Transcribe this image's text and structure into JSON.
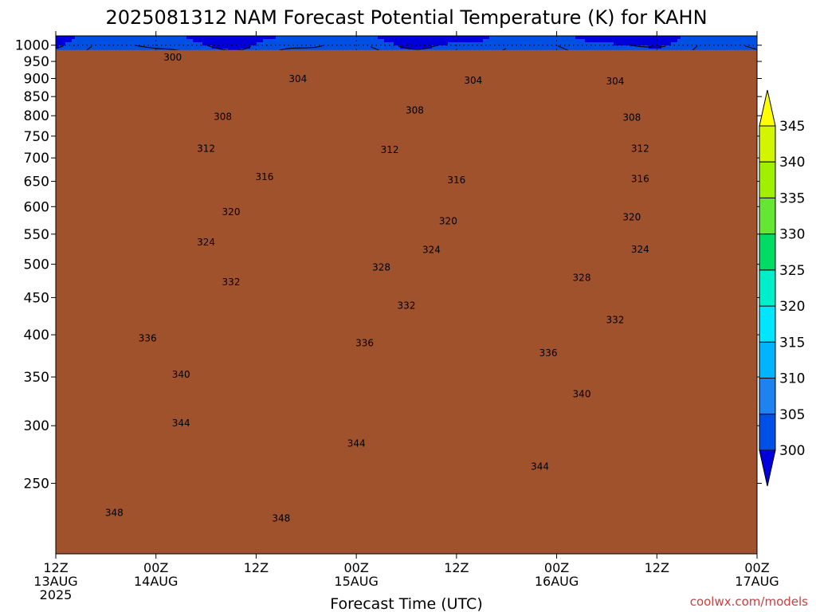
{
  "chart_data": {
    "type": "heatmap",
    "title": "2025081312 NAM Forecast Potential Temperature (K) for KAHN",
    "xlabel": "Forecast Time (UTC)",
    "ylabel": "",
    "y_scale": "log",
    "ylim": [
      1030,
      200
    ],
    "yticks": [
      250,
      300,
      350,
      400,
      450,
      500,
      550,
      600,
      650,
      700,
      750,
      800,
      850,
      900,
      950,
      1000
    ],
    "xlim": [
      0,
      84
    ],
    "xticks": [
      {
        "h": 0,
        "line1": "12Z",
        "line2": "13AUG",
        "line3": "2025"
      },
      {
        "h": 12,
        "line1": "00Z",
        "line2": "14AUG",
        "line3": ""
      },
      {
        "h": 24,
        "line1": "12Z",
        "line2": "",
        "line3": ""
      },
      {
        "h": 36,
        "line1": "00Z",
        "line2": "15AUG",
        "line3": ""
      },
      {
        "h": 48,
        "line1": "12Z",
        "line2": "",
        "line3": ""
      },
      {
        "h": 60,
        "line1": "00Z",
        "line2": "16AUG",
        "line3": ""
      },
      {
        "h": 72,
        "line1": "12Z",
        "line2": "",
        "line3": ""
      },
      {
        "h": 84,
        "line1": "00Z",
        "line2": "17AUG",
        "line3": ""
      }
    ],
    "grid": true,
    "surface_pressure": 985,
    "profile_p": [
      1000,
      975,
      950,
      925,
      900,
      850,
      800,
      750,
      700,
      650,
      600,
      550,
      500,
      450,
      400,
      350,
      300,
      250,
      200
    ],
    "profile_theta": [
      301,
      302,
      302.8,
      303.6,
      304.5,
      306.5,
      308.5,
      311,
      313.5,
      316.5,
      319.5,
      322.5,
      326.5,
      331,
      335,
      339,
      342.5,
      346,
      350
    ],
    "colorbar": {
      "levels": [
        300,
        305,
        310,
        315,
        320,
        325,
        330,
        335,
        340,
        345
      ],
      "colors": [
        "#0000dd",
        "#0050e6",
        "#1e82f0",
        "#00b4ff",
        "#00e6ff",
        "#00eec8",
        "#00dc64",
        "#64e632",
        "#a0f000",
        "#d2f500",
        "#ffff00"
      ],
      "ground_color": "#a0522d"
    },
    "contour_labels": [
      {
        "text": "348",
        "h": 7,
        "p": 228
      },
      {
        "text": "348",
        "h": 27,
        "p": 224
      },
      {
        "text": "344",
        "h": 15,
        "p": 303
      },
      {
        "text": "344",
        "h": 36,
        "p": 284
      },
      {
        "text": "344",
        "h": 58,
        "p": 264
      },
      {
        "text": "340",
        "h": 15,
        "p": 353
      },
      {
        "text": "340",
        "h": 63,
        "p": 332
      },
      {
        "text": "336",
        "h": 11,
        "p": 396
      },
      {
        "text": "336",
        "h": 37,
        "p": 390
      },
      {
        "text": "336",
        "h": 59,
        "p": 378
      },
      {
        "text": "332",
        "h": 21,
        "p": 473
      },
      {
        "text": "332",
        "h": 42,
        "p": 439
      },
      {
        "text": "332",
        "h": 67,
        "p": 420
      },
      {
        "text": "328",
        "h": 39,
        "p": 496
      },
      {
        "text": "328",
        "h": 63,
        "p": 480
      },
      {
        "text": "324",
        "h": 18,
        "p": 537
      },
      {
        "text": "324",
        "h": 45,
        "p": 524
      },
      {
        "text": "324",
        "h": 70,
        "p": 525
      },
      {
        "text": "320",
        "h": 21,
        "p": 591
      },
      {
        "text": "320",
        "h": 47,
        "p": 574
      },
      {
        "text": "320",
        "h": 69,
        "p": 581
      },
      {
        "text": "316",
        "h": 25,
        "p": 660
      },
      {
        "text": "316",
        "h": 48,
        "p": 653
      },
      {
        "text": "316",
        "h": 70,
        "p": 656
      },
      {
        "text": "312",
        "h": 18,
        "p": 722
      },
      {
        "text": "312",
        "h": 40,
        "p": 719
      },
      {
        "text": "312",
        "h": 70,
        "p": 722
      },
      {
        "text": "308",
        "h": 20,
        "p": 798
      },
      {
        "text": "308",
        "h": 43,
        "p": 815
      },
      {
        "text": "308",
        "h": 69,
        "p": 796
      },
      {
        "text": "304",
        "h": 29,
        "p": 900
      },
      {
        "text": "304",
        "h": 50,
        "p": 896
      },
      {
        "text": "304",
        "h": 67,
        "p": 893
      },
      {
        "text": "300",
        "h": 14,
        "p": 963
      }
    ]
  },
  "credit": "coolwx.com/models"
}
